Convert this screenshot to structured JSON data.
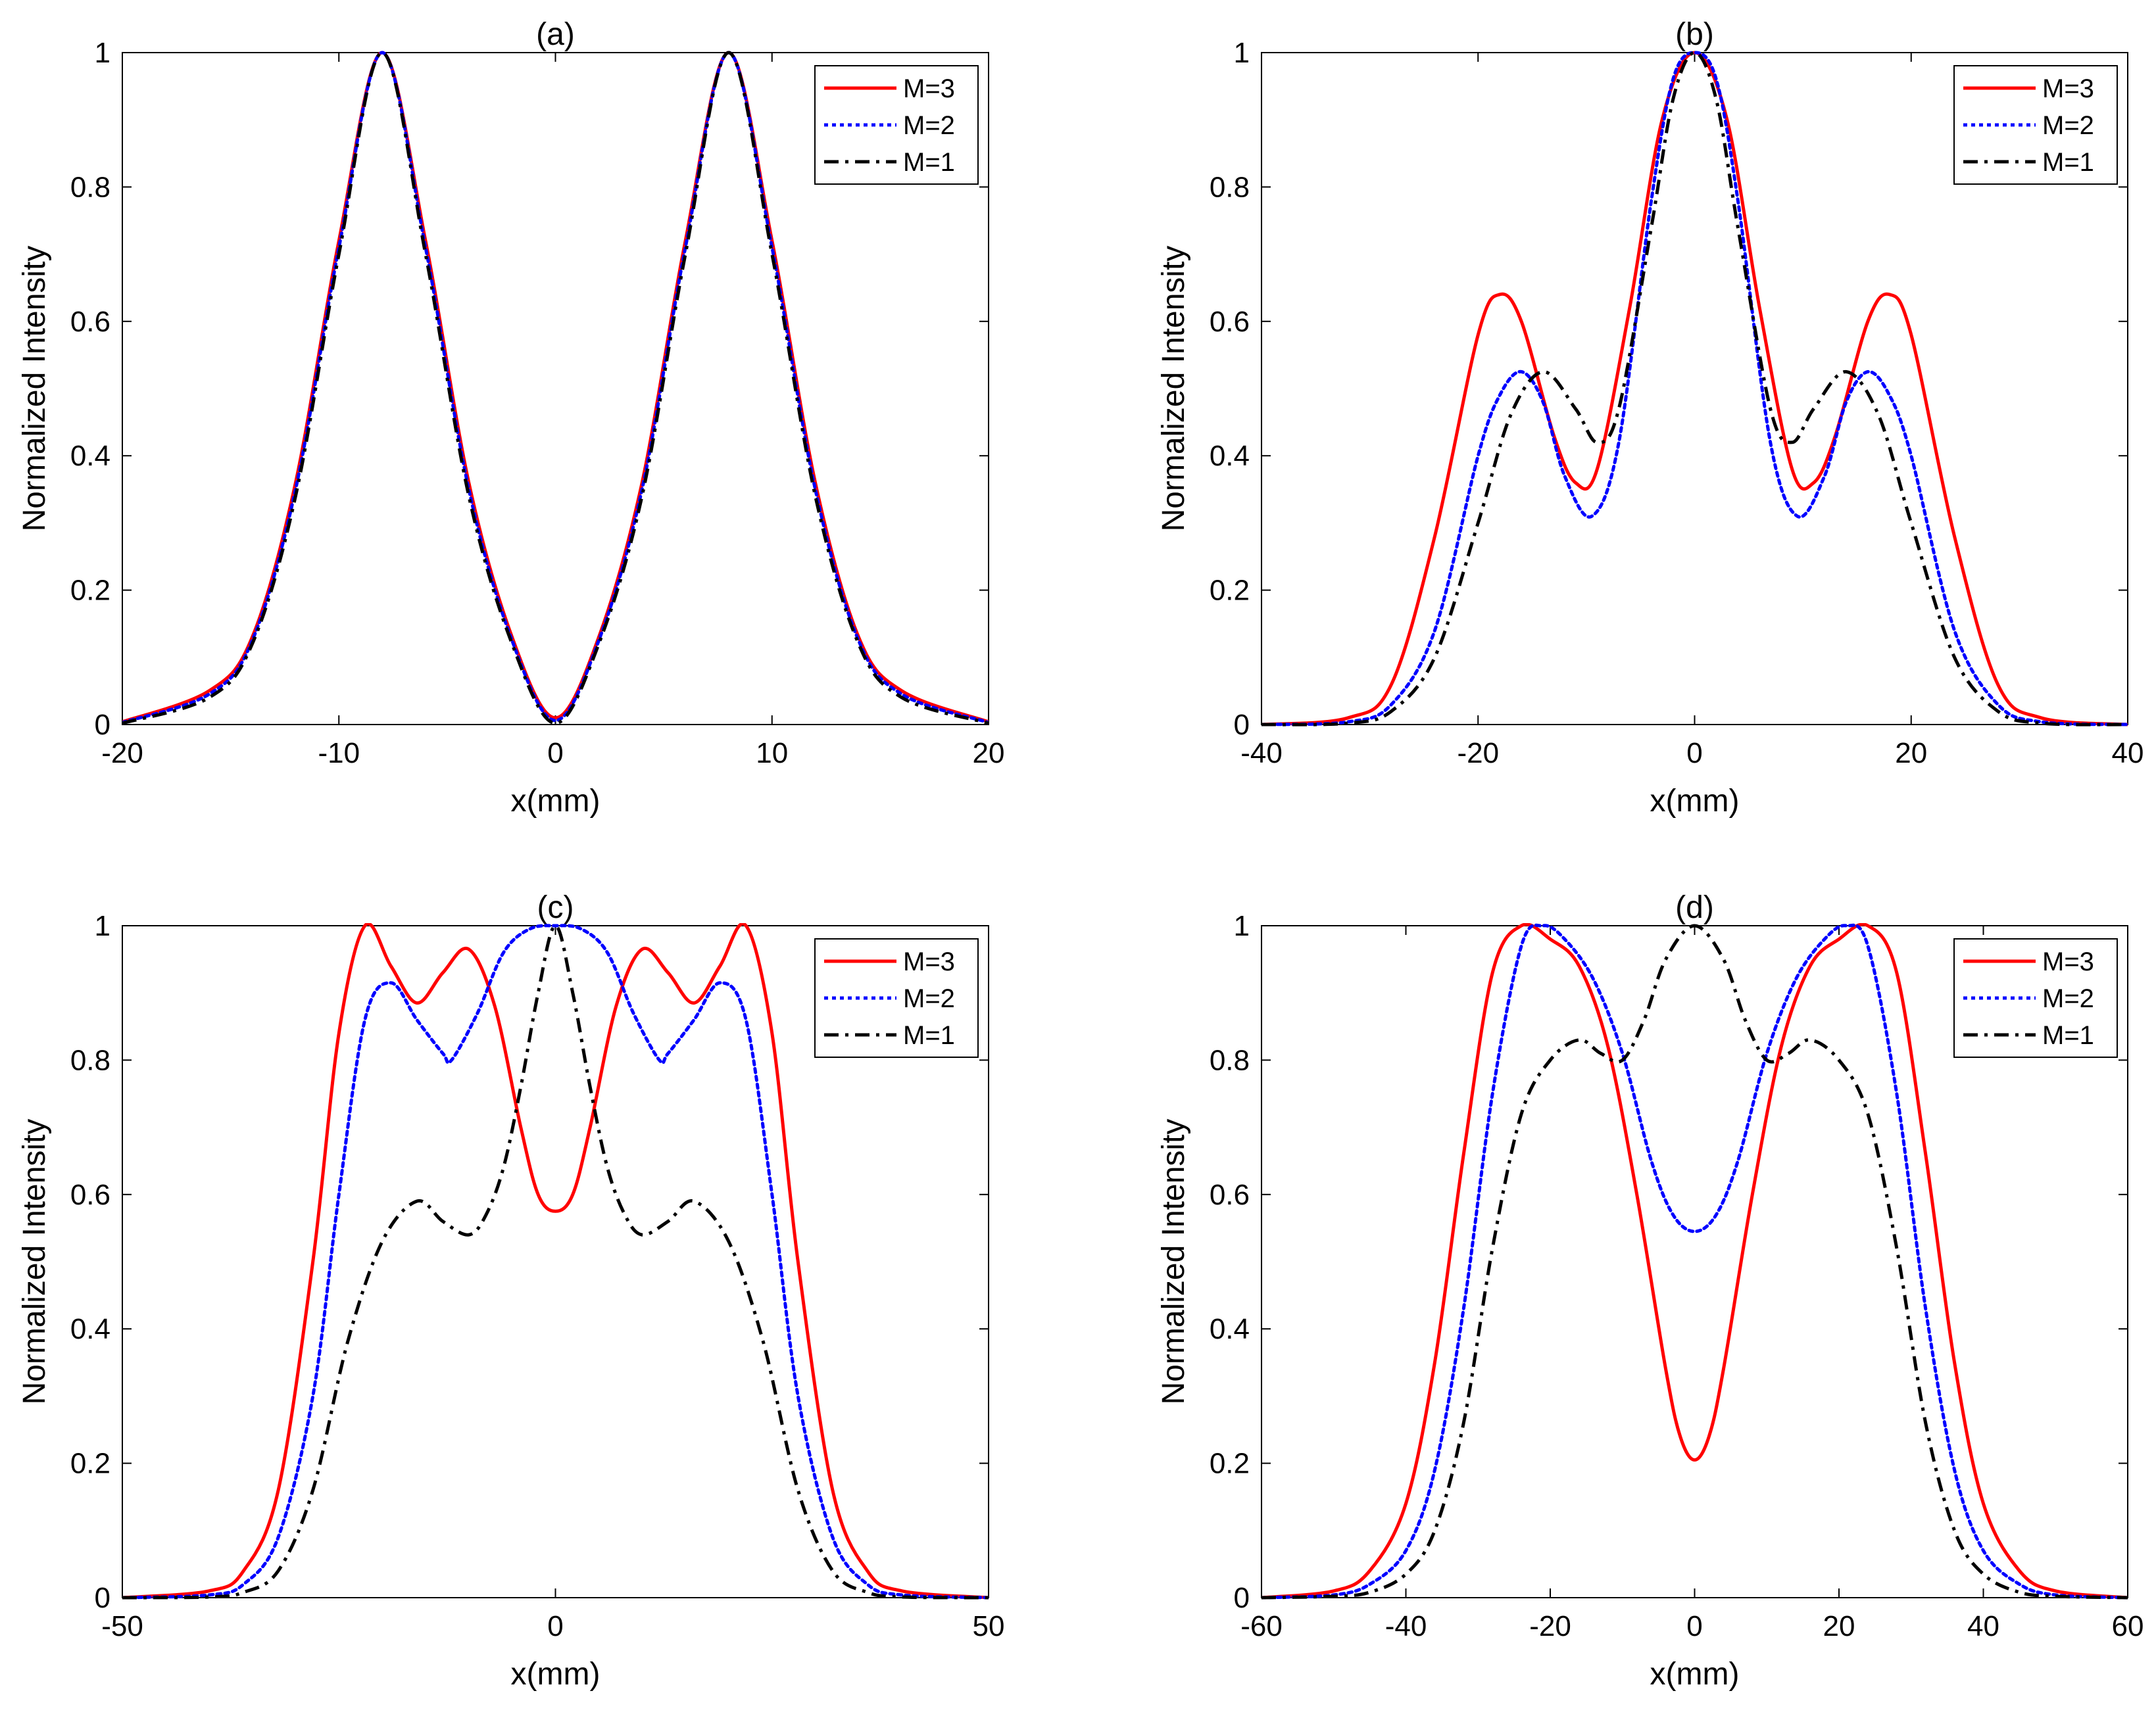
{
  "figure": {
    "panel_count": 4
  },
  "chart_data": [
    {
      "type": "line",
      "title": "(a)",
      "xlabel": "x(mm)",
      "ylabel": "Normalized Intensity",
      "xlim": [
        -20,
        20
      ],
      "ylim": [
        0,
        1
      ],
      "xticks": [
        -20,
        -10,
        0,
        10,
        20
      ],
      "yticks": [
        0,
        0.2,
        0.4,
        0.6,
        0.8,
        1
      ],
      "legend": {
        "placement": "top-right",
        "entries": [
          "M=3",
          "M=2",
          "M=1"
        ]
      },
      "series": [
        {
          "name": "M=3",
          "color": "#ff0000",
          "style": "solid",
          "x": [
            -20,
            -16,
            -14,
            -12,
            -10,
            -8,
            -6,
            -4,
            -2,
            0,
            2,
            4,
            6,
            8,
            10,
            12,
            14,
            16,
            20
          ],
          "y": [
            0.004,
            0.05,
            0.13,
            0.36,
            0.72,
            1.0,
            0.72,
            0.36,
            0.13,
            0.01,
            0.13,
            0.36,
            0.72,
            1.0,
            0.72,
            0.36,
            0.13,
            0.05,
            0.004
          ]
        },
        {
          "name": "M=2",
          "color": "#0000ff",
          "style": "dotted",
          "x": [
            -20,
            -16,
            -14,
            -12,
            -10,
            -8,
            -6,
            -4,
            -2,
            0,
            2,
            4,
            6,
            8,
            10,
            12,
            14,
            16,
            20
          ],
          "y": [
            0.003,
            0.045,
            0.125,
            0.35,
            0.71,
            1.0,
            0.71,
            0.35,
            0.125,
            0.006,
            0.125,
            0.35,
            0.71,
            1.0,
            0.71,
            0.35,
            0.125,
            0.045,
            0.003
          ]
        },
        {
          "name": "M=1",
          "color": "#000000",
          "style": "dashdot",
          "x": [
            -20,
            -16,
            -14,
            -12,
            -10,
            -8,
            -6,
            -4,
            -2,
            0,
            2,
            4,
            6,
            8,
            10,
            12,
            14,
            16,
            20
          ],
          "y": [
            0.002,
            0.04,
            0.12,
            0.34,
            0.7,
            1.0,
            0.7,
            0.34,
            0.12,
            0.002,
            0.12,
            0.34,
            0.7,
            1.0,
            0.7,
            0.34,
            0.12,
            0.04,
            0.002
          ]
        }
      ]
    },
    {
      "type": "line",
      "title": "(b)",
      "xlabel": "x(mm)",
      "ylabel": "Normalized Intensity",
      "xlim": [
        -40,
        40
      ],
      "ylim": [
        0,
        1
      ],
      "xticks": [
        -40,
        -20,
        0,
        20,
        40
      ],
      "yticks": [
        0,
        0.2,
        0.4,
        0.6,
        0.8,
        1
      ],
      "legend": {
        "placement": "top-right",
        "entries": [
          "M=3",
          "M=2",
          "M=1"
        ]
      },
      "series": [
        {
          "name": "M=3",
          "color": "#ff0000",
          "style": "solid",
          "x": [
            -40,
            -32,
            -28,
            -24,
            -20,
            -18,
            -16,
            -13,
            -11,
            -9,
            -6,
            -3,
            0,
            3,
            6,
            9,
            11,
            13,
            16,
            18,
            20,
            24,
            28,
            32,
            40
          ],
          "y": [
            0,
            0.01,
            0.06,
            0.28,
            0.58,
            0.64,
            0.6,
            0.43,
            0.36,
            0.38,
            0.62,
            0.9,
            1.0,
            0.9,
            0.62,
            0.38,
            0.36,
            0.43,
            0.6,
            0.64,
            0.58,
            0.28,
            0.06,
            0.01,
            0
          ]
        },
        {
          "name": "M=2",
          "color": "#0000ff",
          "style": "dotted",
          "x": [
            -40,
            -32,
            -28,
            -24,
            -20,
            -18,
            -16,
            -14,
            -12,
            -9.5,
            -7,
            -4,
            -2,
            0,
            2,
            4,
            7,
            9.5,
            12,
            14,
            16,
            18,
            20,
            24,
            28,
            32,
            40
          ],
          "y": [
            0,
            0.004,
            0.03,
            0.14,
            0.4,
            0.49,
            0.525,
            0.48,
            0.37,
            0.31,
            0.42,
            0.78,
            0.96,
            1.0,
            0.96,
            0.78,
            0.42,
            0.31,
            0.37,
            0.48,
            0.525,
            0.49,
            0.4,
            0.14,
            0.03,
            0.004,
            0
          ]
        },
        {
          "name": "M=1",
          "color": "#000000",
          "style": "dashdot",
          "x": [
            -40,
            -32,
            -28,
            -24,
            -20,
            -17,
            -14,
            -11,
            -9,
            -7,
            -4,
            -2,
            0,
            2,
            4,
            7,
            9,
            11,
            14,
            17,
            20,
            24,
            28,
            32,
            40
          ],
          "y": [
            0,
            0.002,
            0.02,
            0.1,
            0.3,
            0.46,
            0.525,
            0.47,
            0.42,
            0.47,
            0.74,
            0.93,
            1.0,
            0.93,
            0.74,
            0.47,
            0.42,
            0.47,
            0.525,
            0.46,
            0.3,
            0.1,
            0.02,
            0.002,
            0
          ]
        }
      ]
    },
    {
      "type": "line",
      "title": "(c)",
      "xlabel": "x(mm)",
      "ylabel": "Normalized Intensity",
      "xlim": [
        -50,
        50
      ],
      "ylim": [
        0,
        1
      ],
      "xticks": [
        -50,
        0,
        50
      ],
      "yticks": [
        0,
        0.2,
        0.4,
        0.6,
        0.8,
        1
      ],
      "legend": {
        "placement": "top-right",
        "entries": [
          "M=3",
          "M=2",
          "M=1"
        ]
      },
      "series": [
        {
          "name": "M=3",
          "color": "#ff0000",
          "style": "solid",
          "x": [
            -50,
            -40,
            -36,
            -32,
            -28,
            -25,
            -22,
            -19,
            -16,
            -13,
            -10,
            -7,
            -4,
            -2,
            0,
            2,
            4,
            7,
            10,
            13,
            16,
            19,
            22,
            25,
            28,
            32,
            36,
            40,
            50
          ],
          "y": [
            0,
            0.01,
            0.04,
            0.16,
            0.5,
            0.84,
            1.0,
            0.94,
            0.885,
            0.93,
            0.965,
            0.88,
            0.7,
            0.6,
            0.575,
            0.6,
            0.7,
            0.88,
            0.965,
            0.93,
            0.885,
            0.94,
            1.0,
            0.84,
            0.5,
            0.16,
            0.04,
            0.01,
            0
          ]
        },
        {
          "name": "M=2",
          "color": "#0000ff",
          "style": "dotted",
          "x": [
            -50,
            -40,
            -36,
            -32,
            -28,
            -25,
            -22,
            -19,
            -16,
            -13,
            -12,
            -9,
            -6,
            -3,
            0,
            3,
            6,
            9,
            12,
            13,
            16,
            19,
            22,
            25,
            28,
            32,
            36,
            40,
            50
          ],
          "y": [
            0,
            0.004,
            0.02,
            0.09,
            0.3,
            0.6,
            0.86,
            0.915,
            0.86,
            0.81,
            0.8,
            0.87,
            0.96,
            0.995,
            1.0,
            0.995,
            0.96,
            0.87,
            0.8,
            0.81,
            0.86,
            0.915,
            0.86,
            0.6,
            0.3,
            0.09,
            0.02,
            0.004,
            0
          ]
        },
        {
          "name": "M=1",
          "color": "#000000",
          "style": "dashdot",
          "x": [
            -50,
            -40,
            -36,
            -32,
            -28,
            -24,
            -20,
            -16,
            -13,
            -10,
            -8,
            -6,
            -4,
            -2,
            0,
            2,
            4,
            6,
            8,
            10,
            13,
            16,
            20,
            24,
            28,
            32,
            36,
            40,
            50
          ],
          "y": [
            0,
            0.001,
            0.008,
            0.04,
            0.16,
            0.38,
            0.53,
            0.59,
            0.56,
            0.54,
            0.57,
            0.64,
            0.76,
            0.9,
            1.0,
            0.9,
            0.76,
            0.64,
            0.57,
            0.54,
            0.56,
            0.59,
            0.53,
            0.38,
            0.16,
            0.04,
            0.008,
            0.001,
            0
          ]
        }
      ]
    },
    {
      "type": "line",
      "title": "(d)",
      "xlabel": "x(mm)",
      "ylabel": "Normalized Intensity",
      "xlim": [
        -60,
        60
      ],
      "ylim": [
        0,
        1
      ],
      "xticks": [
        -60,
        -40,
        -20,
        0,
        20,
        40,
        60
      ],
      "yticks": [
        0,
        0.2,
        0.4,
        0.6,
        0.8,
        1
      ],
      "legend": {
        "placement": "top-right",
        "entries": [
          "M=3",
          "M=2",
          "M=1"
        ]
      },
      "series": [
        {
          "name": "M=3",
          "color": "#ff0000",
          "style": "solid",
          "x": [
            -60,
            -50,
            -45,
            -40,
            -36,
            -32,
            -28,
            -24,
            -20,
            -16,
            -12,
            -8,
            -4,
            -2,
            0,
            2,
            4,
            8,
            12,
            16,
            20,
            24,
            28,
            32,
            36,
            40,
            45,
            50,
            60
          ],
          "y": [
            0,
            0.01,
            0.04,
            0.14,
            0.35,
            0.66,
            0.93,
            1.0,
            0.98,
            0.94,
            0.82,
            0.6,
            0.34,
            0.24,
            0.205,
            0.24,
            0.34,
            0.6,
            0.82,
            0.94,
            0.98,
            1.0,
            0.93,
            0.66,
            0.35,
            0.14,
            0.04,
            0.01,
            0
          ]
        },
        {
          "name": "M=2",
          "color": "#0000ff",
          "style": "dotted",
          "x": [
            -60,
            -50,
            -45,
            -40,
            -36,
            -32,
            -28,
            -24,
            -21,
            -18,
            -14,
            -10,
            -6,
            -3,
            0,
            3,
            6,
            10,
            14,
            18,
            21,
            24,
            28,
            32,
            36,
            40,
            45,
            50,
            60
          ],
          "y": [
            0,
            0.004,
            0.02,
            0.07,
            0.19,
            0.43,
            0.75,
            0.97,
            1.0,
            0.98,
            0.92,
            0.81,
            0.65,
            0.57,
            0.545,
            0.57,
            0.65,
            0.81,
            0.92,
            0.98,
            1.0,
            0.97,
            0.75,
            0.43,
            0.19,
            0.07,
            0.02,
            0.004,
            0
          ]
        },
        {
          "name": "M=1",
          "color": "#000000",
          "style": "dashdot",
          "x": [
            -60,
            -50,
            -45,
            -40,
            -36,
            -32,
            -28,
            -24,
            -20,
            -16,
            -13,
            -10,
            -7,
            -4,
            0,
            4,
            7,
            10,
            13,
            16,
            20,
            24,
            28,
            32,
            36,
            40,
            45,
            50,
            60
          ],
          "y": [
            0,
            0.002,
            0.008,
            0.035,
            0.1,
            0.26,
            0.52,
            0.72,
            0.8,
            0.83,
            0.81,
            0.8,
            0.86,
            0.95,
            1.0,
            0.95,
            0.86,
            0.8,
            0.81,
            0.83,
            0.8,
            0.72,
            0.52,
            0.26,
            0.1,
            0.035,
            0.008,
            0.002,
            0
          ]
        }
      ]
    }
  ]
}
